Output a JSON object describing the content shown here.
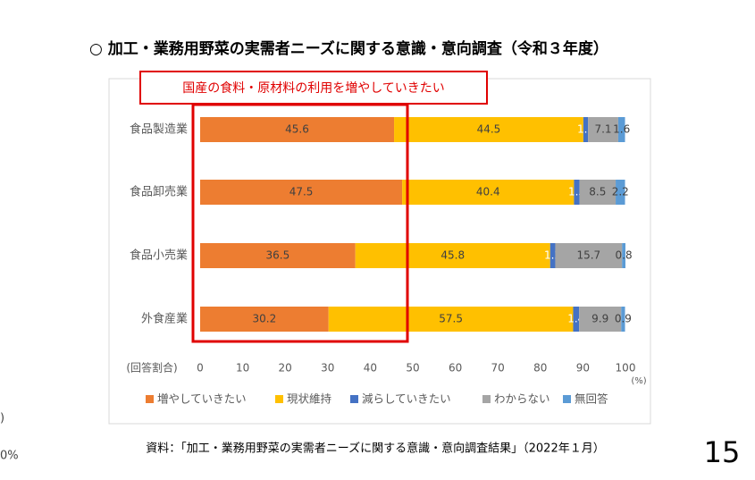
{
  "title": "○ 加工・業務用野菜の実需者ニーズに関する意識・意向調査（令和３年度）",
  "side_fragments": [
    ")",
    "0%"
  ],
  "page_number": "15",
  "source": "資料：「加工・業務用野菜の実需者ニーズに関する意識・意向調査結果」（2022年１月）",
  "chart_data": {
    "type": "stacked-bar-horizontal",
    "annotation": "国産の食料・原材料の利用を増やしていきたい",
    "xlabel": "(回答割合)",
    "unit": "(%)",
    "categories": [
      "食品製造業",
      "食品卸売業",
      "食品小売業",
      "外食産業"
    ],
    "series": [
      {
        "name": "増やしていきたい",
        "color": "#ED7D31",
        "values": [
          45.6,
          47.5,
          36.5,
          30.2
        ]
      },
      {
        "name": "現状維持",
        "color": "#FFC000",
        "values": [
          44.5,
          40.4,
          45.8,
          57.5
        ]
      },
      {
        "name": "減らしていきたい",
        "color": "#4472C4",
        "values": [
          1.1,
          1.3,
          1.2,
          1.4
        ]
      },
      {
        "name": "わからない",
        "color": "#A5A5A5",
        "values": [
          7.1,
          8.5,
          15.7,
          9.9
        ]
      },
      {
        "name": "無回答",
        "color": "#5B9BD5",
        "values": [
          1.6,
          2.2,
          0.8,
          0.9
        ]
      }
    ],
    "xlim": [
      0,
      100
    ],
    "xticks": [
      0,
      10,
      20,
      30,
      40,
      50,
      60,
      70,
      80,
      90,
      100
    ],
    "grid": false,
    "legend": "bottom"
  }
}
